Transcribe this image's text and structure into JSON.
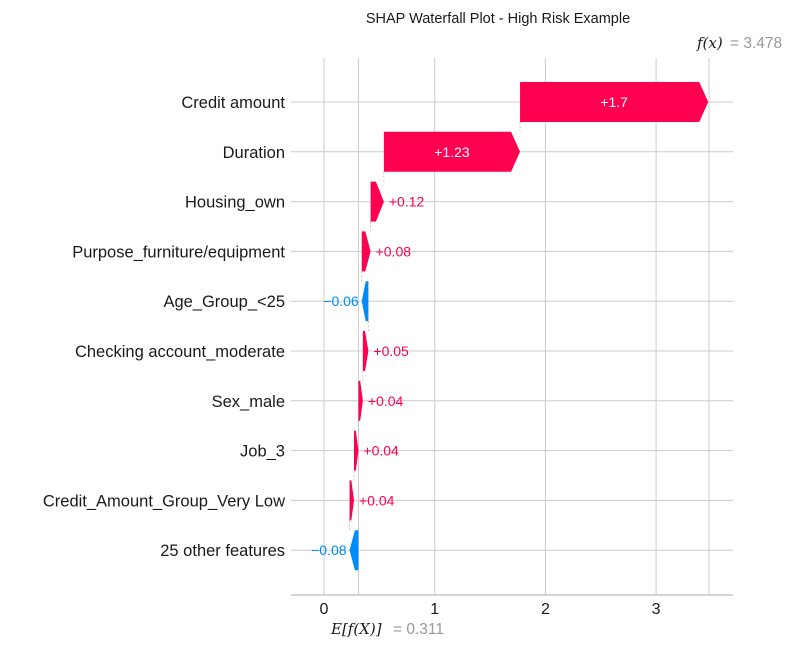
{
  "chart_data": {
    "type": "bar",
    "title": "SHAP Waterfall Plot - High Risk Example",
    "base_value": 0.311,
    "base_value_label": "E[f(X)]",
    "base_value_text": "= 0.311",
    "output_value": 3.478,
    "output_value_label": "f(x)",
    "output_value_text": "= 3.478",
    "xlim": [
      -0.3,
      3.7
    ],
    "xticks": [
      0,
      1,
      2,
      3
    ],
    "grid": true,
    "colors": {
      "positive": "#ff0051",
      "negative": "#008bfb",
      "gridline": "#cccccc",
      "connector": "#bbbbbb"
    },
    "features": [
      {
        "name": "Credit amount",
        "value": 1.7,
        "label": "+1.7"
      },
      {
        "name": "Duration",
        "value": 1.23,
        "label": "+1.23"
      },
      {
        "name": "Housing_own",
        "value": 0.12,
        "label": "+0.12"
      },
      {
        "name": "Purpose_furniture/equipment",
        "value": 0.08,
        "label": "+0.08"
      },
      {
        "name": "Age_Group_<25",
        "value": -0.06,
        "label": "−0.06"
      },
      {
        "name": "Checking account_moderate",
        "value": 0.05,
        "label": "+0.05"
      },
      {
        "name": "Sex_male",
        "value": 0.04,
        "label": "+0.04"
      },
      {
        "name": "Job_3",
        "value": 0.04,
        "label": "+0.04"
      },
      {
        "name": "Credit_Amount_Group_Very Low",
        "value": 0.04,
        "label": "+0.04"
      },
      {
        "name": "25 other features",
        "value": -0.08,
        "label": "−0.08"
      }
    ]
  }
}
